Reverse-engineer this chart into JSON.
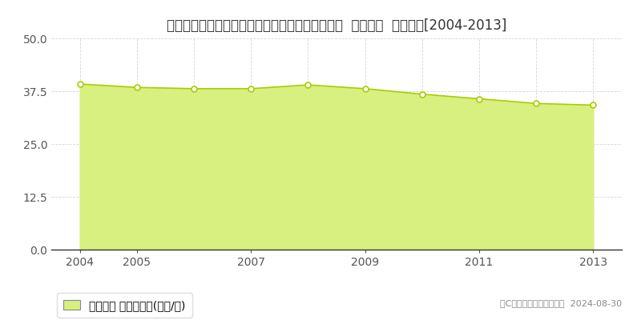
{
  "title": "埼玉県さいたま市見沼区大字御蔵字原前９５番２  地価公示  地価推移[2004-2013]",
  "years": [
    2004,
    2005,
    2006,
    2007,
    2008,
    2009,
    2010,
    2011,
    2012,
    2013
  ],
  "values": [
    39.2,
    38.4,
    38.1,
    38.1,
    39.0,
    38.1,
    36.8,
    35.7,
    34.6,
    34.2
  ],
  "line_color": "#aacc00",
  "fill_color": "#d8f080",
  "marker_face": "#ffffff",
  "marker_edge": "#aacc00",
  "bg_color": "#ffffff",
  "grid_color_h": "#cccccc",
  "grid_color_v": "#cccccc",
  "yticks": [
    0,
    12.5,
    25,
    37.5,
    50
  ],
  "xticks": [
    2004,
    2005,
    2007,
    2009,
    2011,
    2013
  ],
  "xlim": [
    2003.5,
    2013.5
  ],
  "ylim": [
    0,
    50
  ],
  "legend_label": "地価公示 平均坪単価(万円/坪)",
  "copyright": "（C）土地価格ドットコム  2024-08-30",
  "title_fontsize": 12,
  "tick_fontsize": 10,
  "legend_fontsize": 10,
  "copyright_fontsize": 8
}
